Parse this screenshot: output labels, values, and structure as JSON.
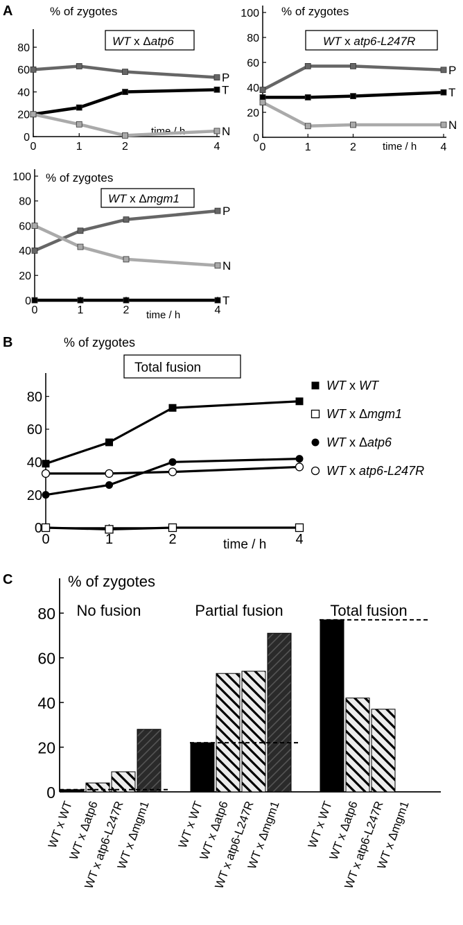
{
  "panel_labels": {
    "a": "A",
    "b": "B",
    "c": "C"
  },
  "colors": {
    "P": "#666666",
    "T": "#000000",
    "N": "#aaaaaa",
    "dark": "#2a2a2a",
    "hatch_bg": "#ececec"
  },
  "chart_data": [
    {
      "panel": "A1",
      "type": "line",
      "ylabel": "% of zygotes",
      "xlabel": "time / h",
      "legend_box": {
        "italic": "WT",
        "rest": " x Δ",
        "italic2": "atp6"
      },
      "x": [
        0,
        1,
        2,
        4
      ],
      "xticks": [
        "0",
        "1",
        "2",
        "4"
      ],
      "yticks": [
        "0",
        "20",
        "40",
        "60",
        "80"
      ],
      "ylim": [
        0,
        90
      ],
      "series": [
        {
          "name": "P",
          "values": [
            60,
            63,
            58,
            53
          ]
        },
        {
          "name": "T",
          "values": [
            20,
            26,
            40,
            42
          ]
        },
        {
          "name": "N",
          "values": [
            20,
            11,
            1,
            5
          ]
        }
      ]
    },
    {
      "panel": "A2",
      "type": "line",
      "ylabel": "% of zygotes",
      "xlabel": "time / h",
      "legend_box": {
        "italic": "WT",
        "rest": " x ",
        "italic2": "atp6-L247R"
      },
      "x": [
        0,
        1,
        2,
        4
      ],
      "xticks": [
        "0",
        "1",
        "2",
        "4"
      ],
      "yticks": [
        "0",
        "20",
        "40",
        "60",
        "80",
        "100"
      ],
      "ylim": [
        0,
        100
      ],
      "series": [
        {
          "name": "P",
          "values": [
            38,
            57,
            57,
            54
          ]
        },
        {
          "name": "T",
          "values": [
            32,
            32,
            33,
            36
          ]
        },
        {
          "name": "N",
          "values": [
            28,
            9,
            10,
            10
          ]
        }
      ]
    },
    {
      "panel": "A3",
      "type": "line",
      "ylabel": "% of zygotes",
      "xlabel": "time / h",
      "legend_box": {
        "italic": "WT",
        "rest": " x Δ",
        "italic2": "mgm1"
      },
      "x": [
        0,
        1,
        2,
        4
      ],
      "xticks": [
        "0",
        "1",
        "2",
        "4"
      ],
      "yticks": [
        "0",
        "20",
        "40",
        "60",
        "80",
        "100"
      ],
      "ylim": [
        0,
        100
      ],
      "series": [
        {
          "name": "P",
          "values": [
            40,
            56,
            65,
            72
          ]
        },
        {
          "name": "N",
          "values": [
            60,
            43,
            33,
            28
          ]
        },
        {
          "name": "T",
          "values": [
            0,
            0,
            0,
            0
          ]
        }
      ]
    },
    {
      "panel": "B",
      "type": "line",
      "ylabel": "% of zygotes",
      "xlabel": "time / h",
      "legend_box": {
        "text": "Total fusion"
      },
      "x": [
        0,
        1,
        2,
        4
      ],
      "xticks": [
        "0",
        "1",
        "2",
        "4"
      ],
      "yticks": [
        "0",
        "20",
        "40",
        "60",
        "80"
      ],
      "ylim": [
        0,
        90
      ],
      "series": [
        {
          "name": "WT x WT",
          "marker": "square-filled",
          "values": [
            39,
            52,
            73,
            77
          ]
        },
        {
          "name": "WT x Δmgm1",
          "marker": "square-open",
          "values": [
            0,
            -1,
            0,
            0
          ]
        },
        {
          "name": "WT x Δatp6",
          "marker": "circle-filled",
          "values": [
            20,
            26,
            40,
            42
          ]
        },
        {
          "name": "WT x atp6-L247R",
          "marker": "circle-open",
          "values": [
            33,
            33,
            34,
            37
          ]
        }
      ],
      "legend": [
        {
          "marker": "square-filled",
          "parts": [
            [
              "WT",
              true
            ],
            [
              "  x  ",
              false
            ],
            [
              "WT",
              true
            ]
          ]
        },
        {
          "marker": "square-open",
          "parts": [
            [
              "WT",
              true
            ],
            [
              "   x  Δ",
              false
            ],
            [
              "mgm1",
              true
            ]
          ]
        },
        {
          "marker": "circle-filled",
          "parts": [
            [
              "WT",
              true
            ],
            [
              "  x  Δ",
              false
            ],
            [
              "atp6",
              true
            ]
          ]
        },
        {
          "marker": "circle-open",
          "parts": [
            [
              "WT",
              true
            ],
            [
              " x ",
              false
            ],
            [
              "atp6-L247R",
              true
            ]
          ]
        }
      ]
    },
    {
      "panel": "C",
      "type": "bar",
      "ylabel": "% of zygotes",
      "yticks": [
        "0",
        "20",
        "40",
        "60",
        "80"
      ],
      "ylim": [
        0,
        90
      ],
      "categories": [
        "WT x WT",
        "WT x Δatp6",
        "WT x atp6-L247R",
        "WT x Δmgm1"
      ],
      "groups": [
        {
          "name": "No fusion",
          "values": [
            1,
            4,
            9,
            28
          ],
          "reference": 1
        },
        {
          "name": "Partial fusion",
          "values": [
            22,
            53,
            54,
            71
          ],
          "reference": 22
        },
        {
          "name": "Total fusion",
          "values": [
            77,
            42,
            37,
            0
          ],
          "reference": 77
        }
      ]
    }
  ]
}
